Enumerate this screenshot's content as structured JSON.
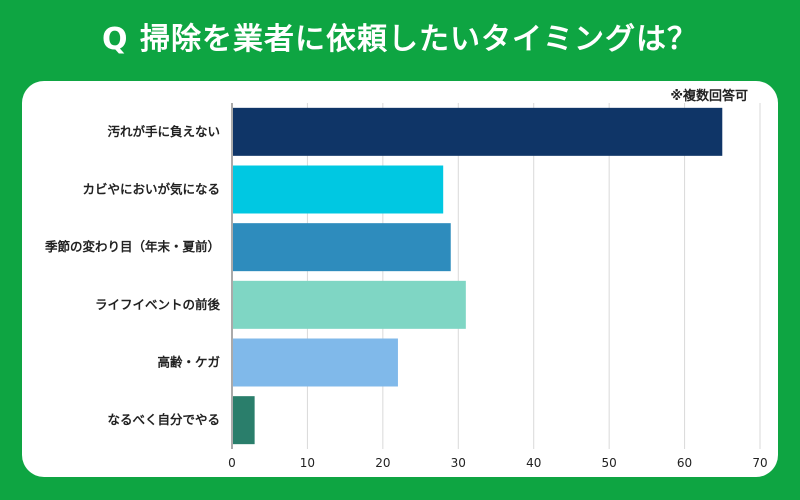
{
  "title": "Q 掃除を業者に依頼したいタイミングは？",
  "note": "※複数回答可",
  "colors": {
    "background": "#0ea542",
    "card": "#ffffff",
    "grid": "#d9d9d9"
  },
  "chart_data": {
    "type": "bar",
    "orientation": "horizontal",
    "categories": [
      "汚れが手に負えない",
      "カビやにおいが気になる",
      "季節の変わり目（年末・夏前）",
      "ライフイベントの前後",
      "高齢・ケガ",
      "なるべく自分でやる"
    ],
    "values": [
      65,
      28,
      29,
      31,
      22,
      3
    ],
    "colors": [
      "#0f3567",
      "#00c8e2",
      "#2e8cbd",
      "#7fd6c4",
      "#80b9ea",
      "#2a7e6b"
    ],
    "xlim": [
      0,
      70
    ],
    "xticks": [
      0,
      10,
      20,
      30,
      40,
      50,
      60,
      70
    ],
    "grid": true,
    "legend": "none",
    "title": "Q 掃除を業者に依頼したいタイミングは？"
  }
}
